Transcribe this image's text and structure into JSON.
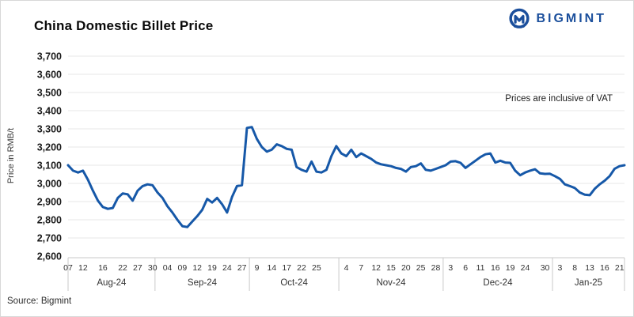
{
  "header": {
    "title": "China Domestic Billet Price",
    "brand": "BIGMINT"
  },
  "footer": {
    "source": "Source: Bigmint"
  },
  "chart_data": {
    "type": "line",
    "title": "China Domestic Billet Price",
    "series_name": "China domestic billet price",
    "ylabel": "Price in RMB/t",
    "annotation": "Prices are inclusive of VAT",
    "ymin": 2600,
    "ymax": 3700,
    "ystep": 100,
    "ytick_labels": [
      "2,600",
      "2,700",
      "2,800",
      "2,900",
      "3,000",
      "3,100",
      "3,200",
      "3,300",
      "3,400",
      "3,500",
      "3,600",
      "3,700"
    ],
    "grid": "horizontal",
    "legend": "none",
    "line_color": "#1658a8",
    "months": [
      {
        "label": "Aug-24",
        "tick_days": [
          "07",
          "12",
          "16",
          "22",
          "27",
          "30"
        ],
        "days": [
          "07",
          "08",
          "09",
          "12",
          "13",
          "14",
          "15",
          "16",
          "19",
          "20",
          "21",
          "22",
          "23",
          "26",
          "27",
          "28",
          "29",
          "30"
        ],
        "values": [
          3100,
          3070,
          3060,
          3070,
          3020,
          2960,
          2905,
          2870,
          2860,
          2865,
          2920,
          2945,
          2940,
          2905,
          2960,
          2985,
          2995,
          2990
        ]
      },
      {
        "label": "Sep-24",
        "tick_days": [
          "04",
          "09",
          "12",
          "19",
          "24",
          "27"
        ],
        "days": [
          "02",
          "03",
          "04",
          "05",
          "06",
          "09",
          "10",
          "11",
          "12",
          "13",
          "18",
          "19",
          "20",
          "23",
          "24",
          "25",
          "26",
          "27",
          "30"
        ],
        "values": [
          2950,
          2920,
          2875,
          2840,
          2800,
          2765,
          2760,
          2790,
          2820,
          2855,
          2915,
          2895,
          2920,
          2885,
          2840,
          2925,
          2985,
          2990,
          3305
        ]
      },
      {
        "label": "Oct-24",
        "tick_days": [
          "9",
          "14",
          "17",
          "22",
          "25"
        ],
        "days": [
          "8",
          "9",
          "10",
          "11",
          "14",
          "15",
          "16",
          "17",
          "18",
          "21",
          "22",
          "23",
          "24",
          "25",
          "28",
          "29",
          "30",
          "31"
        ],
        "values": [
          3310,
          3245,
          3200,
          3175,
          3185,
          3215,
          3205,
          3190,
          3185,
          3090,
          3075,
          3065,
          3120,
          3065,
          3060,
          3075,
          3150,
          3205
        ]
      },
      {
        "label": "Nov-24",
        "tick_days": [
          "4",
          "7",
          "12",
          "15",
          "20",
          "25",
          "28"
        ],
        "days": [
          "1",
          "4",
          "5",
          "6",
          "7",
          "8",
          "11",
          "12",
          "13",
          "14",
          "15",
          "18",
          "19",
          "20",
          "21",
          "22",
          "25",
          "26",
          "27",
          "28",
          "29"
        ],
        "values": [
          3165,
          3150,
          3185,
          3145,
          3165,
          3150,
          3135,
          3115,
          3105,
          3100,
          3095,
          3085,
          3080,
          3065,
          3090,
          3095,
          3110,
          3075,
          3070,
          3080,
          3090
        ]
      },
      {
        "label": "Dec-24",
        "tick_days": [
          "3",
          "6",
          "11",
          "16",
          "19",
          "24",
          "30"
        ],
        "days": [
          "2",
          "3",
          "4",
          "5",
          "6",
          "9",
          "10",
          "11",
          "12",
          "13",
          "16",
          "17",
          "18",
          "19",
          "20",
          "23",
          "24",
          "25",
          "26",
          "27",
          "30",
          "31"
        ],
        "values": [
          3100,
          3120,
          3122,
          3113,
          3085,
          3105,
          3125,
          3145,
          3160,
          3165,
          3115,
          3125,
          3115,
          3113,
          3070,
          3045,
          3060,
          3070,
          3078,
          3055,
          3052,
          3053
        ]
      },
      {
        "label": "Jan-25",
        "tick_days": [
          "3",
          "8",
          "13",
          "16",
          "21"
        ],
        "days": [
          "2",
          "3",
          "6",
          "7",
          "8",
          "9",
          "10",
          "13",
          "14",
          "15",
          "16",
          "17",
          "20",
          "21",
          "22"
        ],
        "values": [
          3040,
          3025,
          2995,
          2985,
          2975,
          2950,
          2938,
          2935,
          2970,
          2995,
          3015,
          3040,
          3080,
          3095,
          3100
        ]
      }
    ]
  }
}
